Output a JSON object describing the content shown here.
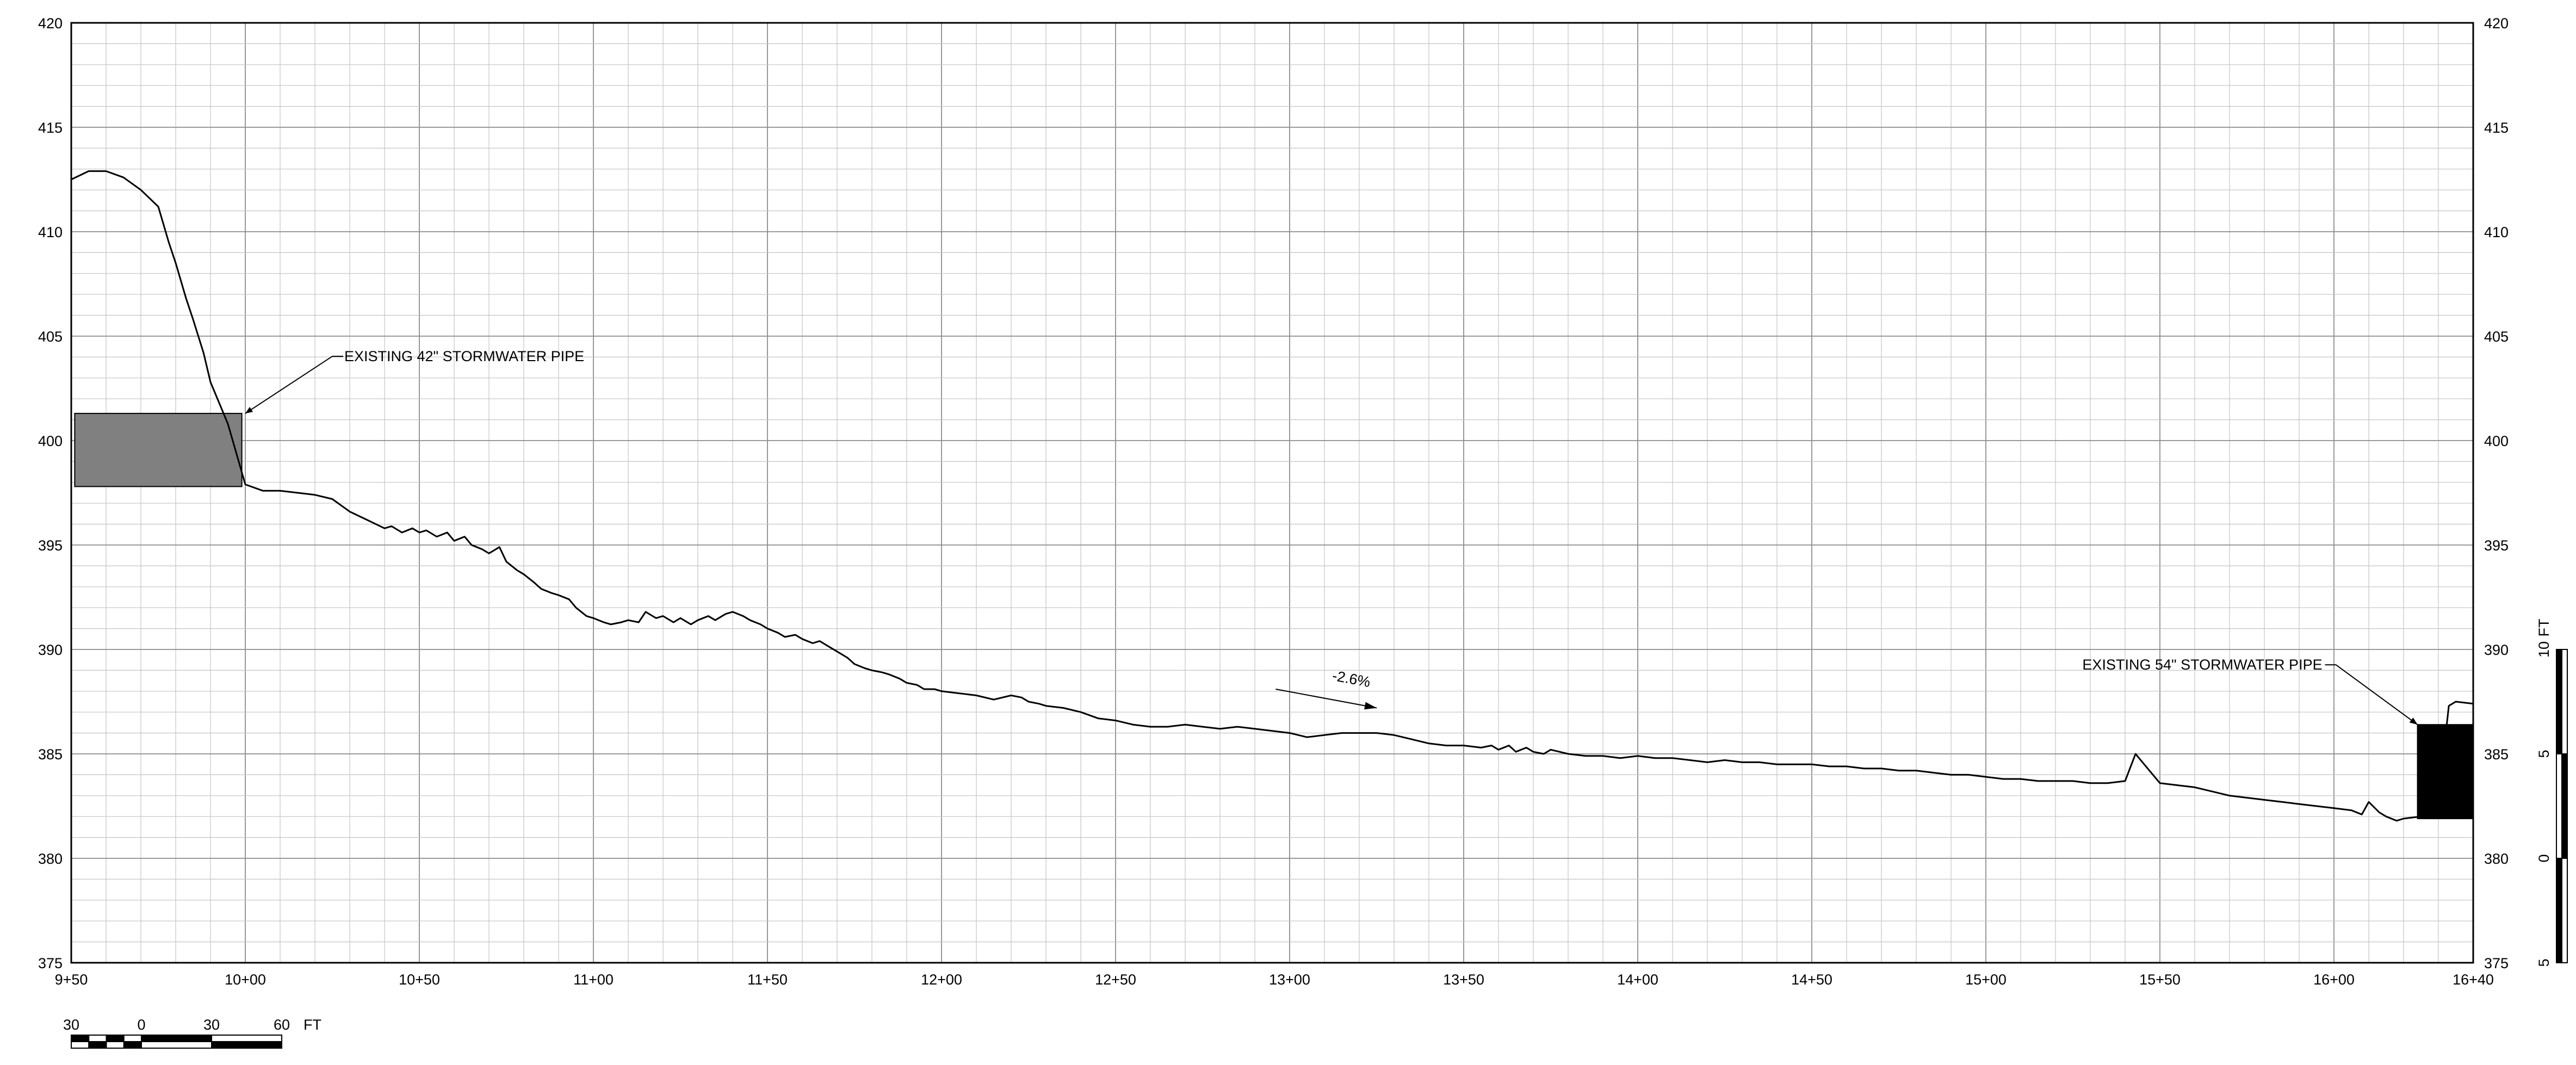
{
  "chart_data": {
    "type": "line",
    "x_axis": {
      "tick_labels": [
        "9+50",
        "10+00",
        "10+50",
        "11+00",
        "11+50",
        "12+00",
        "12+50",
        "13+00",
        "13+50",
        "14+00",
        "14+50",
        "15+00",
        "15+50",
        "16+00",
        "16+40"
      ],
      "tick_values_ft": [
        950,
        1000,
        1050,
        1100,
        1150,
        1200,
        1250,
        1300,
        1350,
        1400,
        1450,
        1500,
        1550,
        1600,
        1640
      ],
      "range_ft": [
        950,
        1640
      ],
      "minor_grid_ft": 10
    },
    "y_axis": {
      "tick_labels": [
        "375",
        "380",
        "385",
        "390",
        "395",
        "400",
        "405",
        "410",
        "415",
        "420"
      ],
      "range": [
        375,
        420
      ],
      "minor_grid": 1,
      "labels_both_sides": true
    },
    "grid": true,
    "series": [
      {
        "x": [
          950,
          955,
          960,
          965,
          970,
          975,
          978,
          980,
          983,
          985,
          988,
          990,
          995,
          1000,
          1005,
          1010,
          1015,
          1020,
          1025,
          1030,
          1035,
          1040,
          1042,
          1045,
          1048,
          1050,
          1052,
          1055,
          1058,
          1060,
          1063,
          1065,
          1068,
          1070,
          1073,
          1075,
          1078,
          1080,
          1083,
          1085,
          1088,
          1090,
          1093,
          1095,
          1098,
          1100,
          1103,
          1105,
          1108,
          1110,
          1113,
          1115,
          1118,
          1120,
          1123,
          1125,
          1128,
          1130,
          1133,
          1135,
          1138,
          1140,
          1143,
          1145,
          1148,
          1150,
          1153,
          1155,
          1158,
          1160,
          1163,
          1165,
          1168,
          1170,
          1173,
          1175,
          1178,
          1180,
          1183,
          1185,
          1188,
          1190,
          1193,
          1195,
          1198,
          1200,
          1205,
          1210,
          1215,
          1220,
          1223,
          1225,
          1228,
          1230,
          1235,
          1240,
          1245,
          1250,
          1255,
          1260,
          1265,
          1270,
          1275,
          1280,
          1285,
          1290,
          1295,
          1300,
          1305,
          1310,
          1315,
          1320,
          1325,
          1330,
          1335,
          1340,
          1345,
          1350,
          1355,
          1358,
          1360,
          1363,
          1365,
          1368,
          1370,
          1373,
          1375,
          1380,
          1385,
          1390,
          1395,
          1400,
          1405,
          1410,
          1415,
          1420,
          1425,
          1430,
          1435,
          1440,
          1445,
          1450,
          1455,
          1460,
          1465,
          1470,
          1475,
          1480,
          1485,
          1490,
          1495,
          1500,
          1505,
          1510,
          1515,
          1520,
          1525,
          1530,
          1535,
          1540,
          1543,
          1545,
          1548,
          1550,
          1555,
          1560,
          1565,
          1570,
          1575,
          1580,
          1585,
          1590,
          1595,
          1600,
          1605,
          1608,
          1610,
          1613,
          1615,
          1618,
          1620,
          1625,
          1628,
          1630,
          1633,
          1635,
          1640
        ],
        "y": [
          412.5,
          412.9,
          412.9,
          412.6,
          412.0,
          411.2,
          409.5,
          408.5,
          406.8,
          405.8,
          404.2,
          402.8,
          400.8,
          397.9,
          397.6,
          397.6,
          397.5,
          397.4,
          397.2,
          396.6,
          396.2,
          395.8,
          395.9,
          395.6,
          395.8,
          395.6,
          395.7,
          395.4,
          395.6,
          395.2,
          395.4,
          395.0,
          394.8,
          394.6,
          394.9,
          394.2,
          393.8,
          393.6,
          393.2,
          392.9,
          392.7,
          392.6,
          392.4,
          392.0,
          391.6,
          391.5,
          391.3,
          391.2,
          391.3,
          391.4,
          391.3,
          391.8,
          391.5,
          391.6,
          391.3,
          391.5,
          391.2,
          391.4,
          391.6,
          391.4,
          391.7,
          391.8,
          391.6,
          391.4,
          391.2,
          391.0,
          390.8,
          390.6,
          390.7,
          390.5,
          390.3,
          390.4,
          390.1,
          389.9,
          389.6,
          389.3,
          389.1,
          389.0,
          388.9,
          388.8,
          388.6,
          388.4,
          388.3,
          388.1,
          388.1,
          388.0,
          387.9,
          387.8,
          387.6,
          387.8,
          387.7,
          387.5,
          387.4,
          387.3,
          387.2,
          387.0,
          386.7,
          386.6,
          386.4,
          386.3,
          386.3,
          386.4,
          386.3,
          386.2,
          386.3,
          386.2,
          386.1,
          386.0,
          385.8,
          385.9,
          386.0,
          386.0,
          386.0,
          385.9,
          385.7,
          385.5,
          385.4,
          385.4,
          385.3,
          385.4,
          385.2,
          385.4,
          385.1,
          385.3,
          385.1,
          385.0,
          385.2,
          385.0,
          384.9,
          384.9,
          384.8,
          384.9,
          384.8,
          384.8,
          384.7,
          384.6,
          384.7,
          384.6,
          384.6,
          384.5,
          384.5,
          384.5,
          384.4,
          384.4,
          384.3,
          384.3,
          384.2,
          384.2,
          384.1,
          384.0,
          384.0,
          383.9,
          383.8,
          383.8,
          383.7,
          383.7,
          383.7,
          383.6,
          383.6,
          383.7,
          385.0,
          384.6,
          384.0,
          383.6,
          383.5,
          383.4,
          383.2,
          383.0,
          382.9,
          382.8,
          382.7,
          382.6,
          382.5,
          382.4,
          382.3,
          382.1,
          382.7,
          382.2,
          382.0,
          381.8,
          381.9,
          382.0,
          382.3,
          382.8,
          387.3,
          387.5,
          387.4
        ]
      }
    ],
    "annotations": [
      {
        "text": "EXISTING 42\" STORMWATER PIPE",
        "x": 1000,
        "y": 401.3
      },
      {
        "text": "EXISTING 54\" STORMWATER PIPE",
        "x": 1624,
        "y": 386.4
      },
      {
        "text": "-2.6%",
        "x": 1312,
        "y": 388.1
      }
    ],
    "features": [
      {
        "name": "existing-42-stormwater-pipe",
        "x_range": [
          951,
          999
        ],
        "y_range": [
          397.8,
          401.3
        ],
        "color": "#808080"
      },
      {
        "name": "existing-54-stormwater-pipe",
        "x_range": [
          1624,
          1640
        ],
        "y_range": [
          381.9,
          386.4
        ],
        "color": "#000000"
      }
    ],
    "slope_arrow": {
      "from": [
        1296,
        388.1
      ],
      "to": [
        1325,
        387.2
      ]
    }
  },
  "horizontal_scale": {
    "labels": [
      "30",
      "0",
      "30",
      "60"
    ],
    "unit": "FT"
  },
  "vertical_scale": {
    "labels": [
      "10",
      "5",
      "0",
      "5"
    ],
    "unit": "FT"
  }
}
